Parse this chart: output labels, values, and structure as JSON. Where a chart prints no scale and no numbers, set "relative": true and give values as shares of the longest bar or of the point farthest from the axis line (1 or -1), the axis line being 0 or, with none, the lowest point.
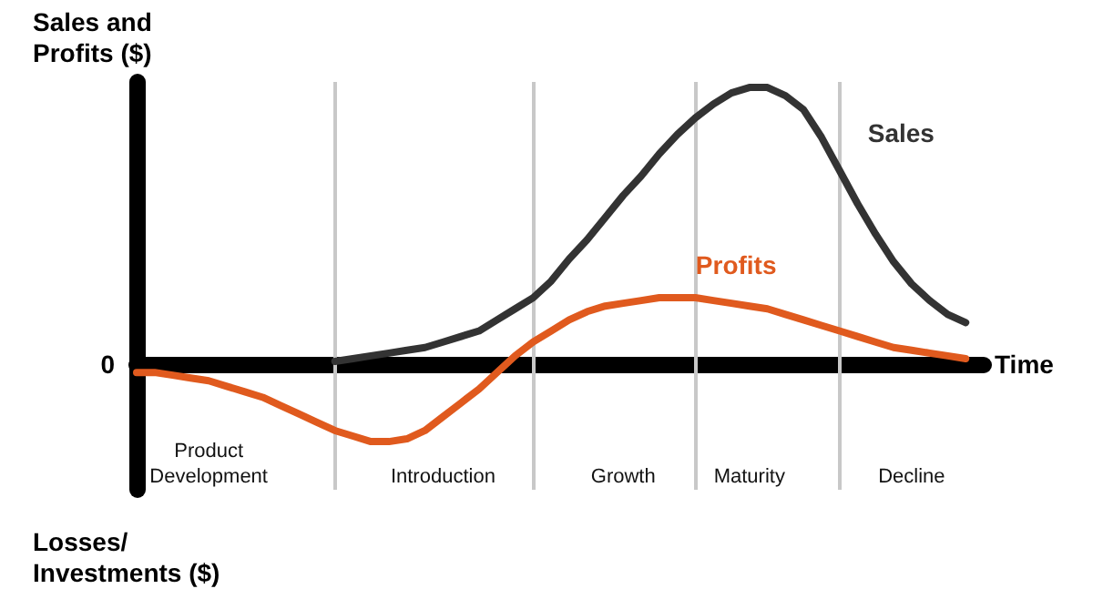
{
  "chart_data": {
    "type": "line",
    "relative": true,
    "ylabel": "Sales and Profits ($)",
    "xlabel": "Time",
    "annotations": [
      "0",
      "Losses/\nInvestments ($)"
    ],
    "tick_labels": "x",
    "legend": false,
    "grid": "x",
    "marker": "none",
    "categories": [
      null,
      null,
      null,
      null,
      "Product\nDevelopment",
      null,
      null,
      null,
      null,
      null,
      null,
      null,
      null,
      null,
      null,
      null,
      null,
      "Introduction",
      null,
      null,
      null,
      null,
      null,
      null,
      null,
      null,
      null,
      "Growth",
      null,
      null,
      null,
      null,
      null,
      null,
      "Maturity",
      null,
      null,
      null,
      null,
      null,
      null,
      null,
      null,
      "Decline",
      null,
      null,
      null,
      null
    ],
    "series": [
      {
        "name": "Sales",
        "color": "#333333",
        "values": [
          null,
          null,
          null,
          null,
          null,
          null,
          null,
          null,
          null,
          null,
          null,
          0.01,
          0.02,
          0.03,
          0.04,
          0.05,
          0.06,
          0.08,
          0.1,
          0.12,
          0.16,
          0.2,
          0.24,
          0.3,
          0.38,
          0.45,
          0.53,
          0.61,
          0.68,
          0.76,
          0.83,
          0.89,
          0.94,
          0.98,
          1,
          1,
          0.97,
          0.92,
          0.82,
          0.7,
          0.58,
          0.47,
          0.37,
          0.29,
          0.23,
          0.18,
          0.15,
          null
        ]
      },
      {
        "name": "Profits",
        "color": "#e05a1e",
        "values": [
          -0.03,
          -0.03,
          -0.04,
          -0.05,
          -0.06,
          -0.08,
          -0.1,
          -0.12,
          -0.15,
          -0.18,
          -0.21,
          -0.24,
          -0.26,
          -0.28,
          -0.28,
          -0.27,
          -0.24,
          -0.19,
          -0.14,
          -0.09,
          -0.03,
          0.03,
          0.08,
          0.12,
          0.16,
          0.19,
          0.21,
          0.22,
          0.23,
          0.24,
          0.24,
          0.24,
          0.23,
          0.22,
          0.21,
          0.2,
          0.18,
          0.16,
          0.14,
          0.12,
          0.1,
          0.08,
          0.06,
          0.05,
          0.04,
          0.03,
          0.02,
          null
        ]
      }
    ]
  }
}
